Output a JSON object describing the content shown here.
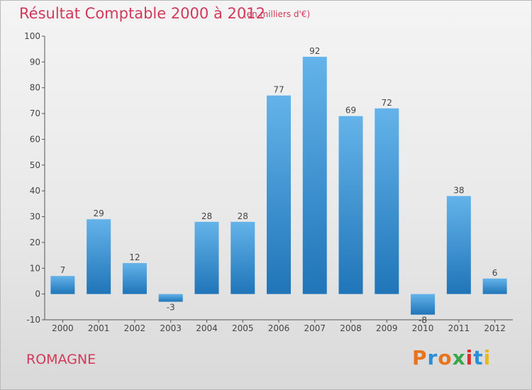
{
  "title": "Résultat Comptable 2000 à 2012",
  "subtitle": "(en milliers d'€)",
  "commune": "ROMAGNE",
  "brand": {
    "name": "Proxiti",
    "letters": [
      "P",
      "r",
      "o",
      "x",
      "i",
      "t",
      "i"
    ],
    "colors": [
      "#e8741e",
      "#2a8fd6",
      "#e8741e",
      "#3aa64a",
      "#d6322e",
      "#2a8fd6",
      "#e8b81e"
    ]
  },
  "colors": {
    "bar_light": "#64b3ea",
    "bar_dark": "#1f75b8",
    "title": "#d13a5a"
  },
  "chart_data": {
    "type": "bar",
    "title": "Résultat Comptable 2000 à 2012",
    "ylabel": "en milliers d'€",
    "xlabel": "",
    "categories": [
      "2000",
      "2001",
      "2002",
      "2003",
      "2004",
      "2005",
      "2006",
      "2007",
      "2008",
      "2009",
      "2010",
      "2011",
      "2012"
    ],
    "values": [
      7,
      29,
      12,
      -3,
      28,
      28,
      77,
      92,
      69,
      72,
      -8,
      38,
      6
    ],
    "ylim": [
      -10,
      100
    ],
    "yticks": [
      -10,
      0,
      10,
      20,
      30,
      40,
      50,
      60,
      70,
      80,
      90,
      100
    ],
    "grid": false
  }
}
